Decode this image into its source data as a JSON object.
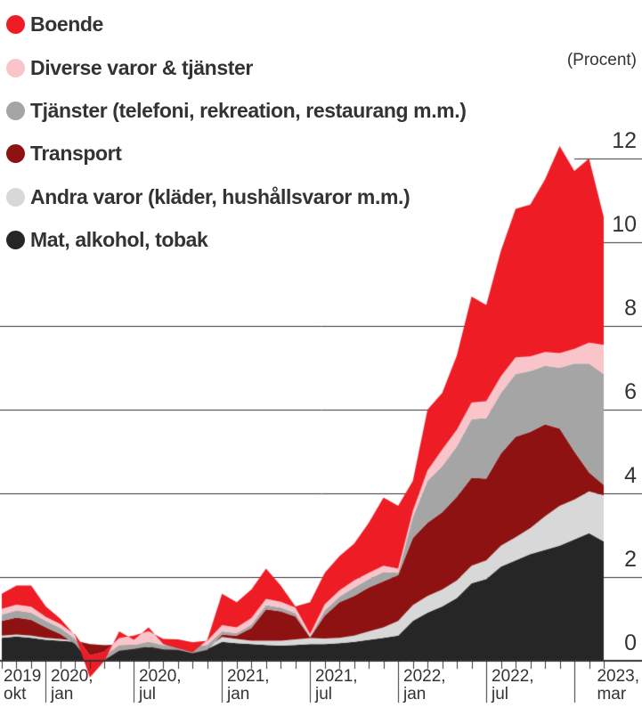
{
  "header": {
    "procent_label": "(Procent)"
  },
  "legend": {
    "items": [
      {
        "label": "Boende",
        "color": "#EE1C25"
      },
      {
        "label": "Diverse varor & tjänster",
        "color": "#F9C5CB"
      },
      {
        "label": "Tjänster (telefoni, rekreation, restaurang m.m.)",
        "color": "#A5A5A5"
      },
      {
        "label": "Transport",
        "color": "#8E1212"
      },
      {
        "label": "Andra varor (kläder, hushållsvaror m.m.)",
        "color": "#D8D8D8"
      },
      {
        "label": "Mat, alkohol, tobak",
        "color": "#262626"
      }
    ]
  },
  "chart_data": {
    "type": "area",
    "stacked": true,
    "title": "",
    "ylabel": "(Procent)",
    "unit": "percentage points, contribution to yearly inflation",
    "ylim": [
      -0.5,
      12.5
    ],
    "y_ticks": [
      0,
      2,
      4,
      6,
      8,
      10,
      12
    ],
    "grid": "horizontal",
    "legend_position": "top-left",
    "months": [
      "2019-10",
      "2019-11",
      "2019-12",
      "2020-01",
      "2020-02",
      "2020-03",
      "2020-04",
      "2020-05",
      "2020-06",
      "2020-07",
      "2020-08",
      "2020-09",
      "2020-10",
      "2020-11",
      "2020-12",
      "2021-01",
      "2021-02",
      "2021-03",
      "2021-04",
      "2021-05",
      "2021-06",
      "2021-07",
      "2021-08",
      "2021-09",
      "2021-10",
      "2021-11",
      "2021-12",
      "2022-01",
      "2022-02",
      "2022-03",
      "2022-04",
      "2022-05",
      "2022-06",
      "2022-07",
      "2022-08",
      "2022-09",
      "2022-10",
      "2022-11",
      "2022-12",
      "2023-01",
      "2023-02",
      "2023-03"
    ],
    "x_axis_labels": [
      {
        "line1": "2019",
        "line2": "okt",
        "month_index": 0
      },
      {
        "line1": "2020,",
        "line2": "jan",
        "month_index": 3
      },
      {
        "line1": "2020,",
        "line2": "jul",
        "month_index": 9
      },
      {
        "line1": "2021,",
        "line2": "jan",
        "month_index": 15
      },
      {
        "line1": "2021,",
        "line2": "jul",
        "month_index": 21
      },
      {
        "line1": "2022,",
        "line2": "jan",
        "month_index": 27
      },
      {
        "line1": "2022,",
        "line2": "jul",
        "month_index": 33
      },
      {
        "line1": "2023,",
        "line2": "mar",
        "month_index": 41
      }
    ],
    "separator_month_indices": [
      3,
      9,
      15,
      21,
      27,
      33,
      39
    ],
    "series": [
      {
        "name": "Mat, alkohol, tobak",
        "color": "#262626",
        "values": [
          0.55,
          0.58,
          0.55,
          0.5,
          0.48,
          0.45,
          0.38,
          0.35,
          0.35,
          0.33,
          0.33,
          0.3,
          0.28,
          0.27,
          0.28,
          0.45,
          0.42,
          0.4,
          0.38,
          0.36,
          0.38,
          0.4,
          0.4,
          0.42,
          0.45,
          0.5,
          0.55,
          0.6,
          0.95,
          1.15,
          1.3,
          1.5,
          1.85,
          1.95,
          2.25,
          2.4,
          2.55,
          2.65,
          2.75,
          2.9,
          3.05,
          2.85
        ]
      },
      {
        "name": "Andra varor (kläder, hushållsvaror m.m.)",
        "color": "#D8D8D8",
        "values": [
          0.05,
          0.05,
          0.05,
          0.05,
          0.04,
          0.03,
          0.02,
          0.02,
          0.04,
          0.05,
          0.06,
          0.05,
          0.04,
          0.03,
          0.03,
          0.12,
          0.1,
          0.08,
          0.1,
          0.12,
          0.13,
          0.14,
          0.13,
          0.13,
          0.15,
          0.2,
          0.25,
          0.35,
          0.38,
          0.4,
          0.4,
          0.42,
          0.42,
          0.45,
          0.5,
          0.55,
          0.62,
          0.8,
          0.95,
          0.95,
          1.0,
          1.1
        ]
      },
      {
        "name": "Transport",
        "color": "#8E1212",
        "values": [
          0.35,
          0.4,
          0.38,
          0.25,
          0.12,
          -0.08,
          -0.45,
          -0.35,
          -0.15,
          -0.1,
          -0.05,
          -0.08,
          -0.06,
          -0.12,
          -0.05,
          0.05,
          0.08,
          0.3,
          0.75,
          0.7,
          0.55,
          0.02,
          0.55,
          0.85,
          0.95,
          1.05,
          1.1,
          1.1,
          1.6,
          1.75,
          1.85,
          2.0,
          2.1,
          1.95,
          2.2,
          2.4,
          2.3,
          2.2,
          1.85,
          1.15,
          0.45,
          0.25
        ]
      },
      {
        "name": "Tjänster (telefoni, rekreation, restaurang m.m.)",
        "color": "#A5A5A5",
        "values": [
          0.15,
          0.17,
          0.17,
          0.15,
          0.14,
          0.12,
          0.08,
          0.08,
          0.12,
          0.1,
          0.12,
          0.1,
          0.15,
          0.16,
          0.12,
          0.08,
          0.06,
          0.08,
          0.1,
          0.09,
          0.08,
          0.02,
          0.12,
          0.13,
          0.2,
          0.2,
          0.22,
          0.05,
          0.5,
          1.0,
          1.1,
          1.2,
          1.4,
          1.45,
          1.45,
          1.5,
          1.45,
          1.4,
          1.45,
          2.1,
          2.6,
          2.65
        ]
      },
      {
        "name": "Diverse varor & tjänster",
        "color": "#F9C5CB",
        "values": [
          0.14,
          0.14,
          0.14,
          0.1,
          0.1,
          0.1,
          0.1,
          0.12,
          0.18,
          0.22,
          0.25,
          0.15,
          0.1,
          0.1,
          0.1,
          0.15,
          0.14,
          0.16,
          0.15,
          0.14,
          0.13,
          0.06,
          0.15,
          0.15,
          0.17,
          0.15,
          0.15,
          0.1,
          0.15,
          0.25,
          0.4,
          0.4,
          0.4,
          0.4,
          0.4,
          0.4,
          0.35,
          0.33,
          0.35,
          0.35,
          0.5,
          0.7
        ]
      },
      {
        "name": "Boende",
        "color": "#EE1C25",
        "values": [
          0.36,
          0.46,
          0.51,
          0.25,
          0.12,
          -0.02,
          -0.53,
          -0.22,
          0.16,
          -0.1,
          0.09,
          -0.12,
          -0.21,
          -0.24,
          0.02,
          0.75,
          0.6,
          0.68,
          0.72,
          0.39,
          0.03,
          0.76,
          0.75,
          0.82,
          0.88,
          1.2,
          1.63,
          1.5,
          0.72,
          1.45,
          1.35,
          1.78,
          2.53,
          2.3,
          3.0,
          3.55,
          3.63,
          4.12,
          4.95,
          4.25,
          4.4,
          3.05
        ]
      }
    ],
    "totals": [
      1.6,
      1.8,
      1.8,
      1.3,
      1.0,
      0.6,
      -0.4,
      0.0,
      0.7,
      0.5,
      0.8,
      0.4,
      0.3,
      0.2,
      0.5,
      1.6,
      1.4,
      1.7,
      2.2,
      1.8,
      1.3,
      1.4,
      2.1,
      2.5,
      2.8,
      3.3,
      3.9,
      3.7,
      4.3,
      6.0,
      6.4,
      7.3,
      8.7,
      8.5,
      9.8,
      10.8,
      10.9,
      11.5,
      12.3,
      11.7,
      12.0,
      10.6
    ]
  }
}
